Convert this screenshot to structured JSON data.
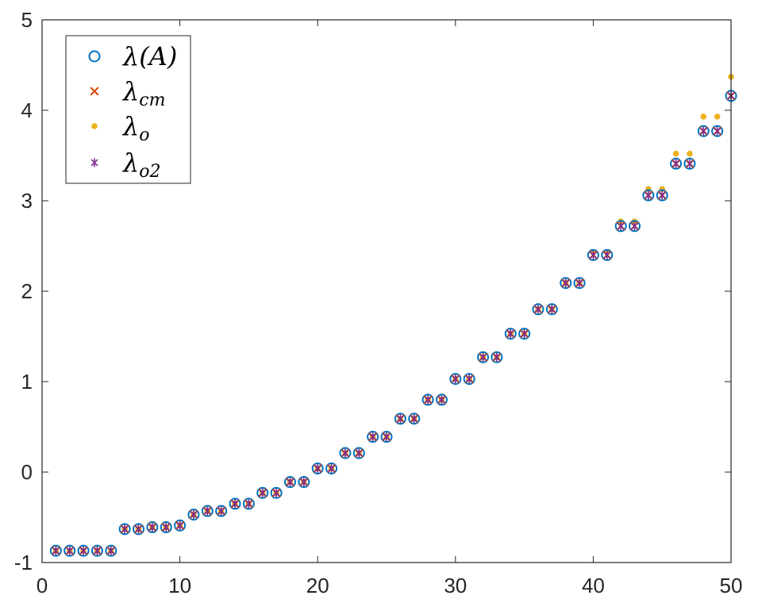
{
  "chart_data": {
    "type": "scatter",
    "title": "",
    "xlabel": "",
    "ylabel": "",
    "xlim": [
      0,
      50
    ],
    "ylim": [
      -1,
      5
    ],
    "xticks": [
      0,
      10,
      20,
      30,
      40,
      50
    ],
    "yticks": [
      -1,
      0,
      1,
      2,
      3,
      4,
      5
    ],
    "grid": false,
    "legend_position": "top-left",
    "x": [
      1,
      2,
      3,
      4,
      5,
      6,
      7,
      8,
      9,
      10,
      11,
      12,
      13,
      14,
      15,
      16,
      17,
      18,
      19,
      20,
      21,
      22,
      23,
      24,
      25,
      26,
      27,
      28,
      29,
      30,
      31,
      32,
      33,
      34,
      35,
      36,
      37,
      38,
      39,
      40,
      41,
      42,
      43,
      44,
      45,
      46,
      47,
      48,
      49,
      50
    ],
    "series": [
      {
        "name": "λ(A)",
        "label_base": "λ(A)",
        "label_sub": "",
        "marker": "circle",
        "color": "#0072BD",
        "values": [
          -0.87,
          -0.87,
          -0.87,
          -0.87,
          -0.87,
          -0.63,
          -0.63,
          -0.61,
          -0.61,
          -0.59,
          -0.47,
          -0.43,
          -0.43,
          -0.35,
          -0.35,
          -0.23,
          -0.23,
          -0.11,
          -0.11,
          0.04,
          0.04,
          0.21,
          0.21,
          0.39,
          0.39,
          0.59,
          0.59,
          0.8,
          0.8,
          1.03,
          1.03,
          1.27,
          1.27,
          1.53,
          1.53,
          1.8,
          1.8,
          2.09,
          2.09,
          2.4,
          2.4,
          2.72,
          2.72,
          3.06,
          3.06,
          3.41,
          3.41,
          3.77,
          3.77,
          4.16
        ]
      },
      {
        "name": "λcm",
        "label_base": "λ",
        "label_sub": "cm",
        "marker": "x",
        "color": "#D95319",
        "values": [
          -0.87,
          -0.87,
          -0.87,
          -0.87,
          -0.87,
          -0.63,
          -0.63,
          -0.61,
          -0.61,
          -0.59,
          -0.47,
          -0.43,
          -0.43,
          -0.35,
          -0.35,
          -0.23,
          -0.23,
          -0.11,
          -0.11,
          0.04,
          0.04,
          0.21,
          0.21,
          0.39,
          0.39,
          0.59,
          0.59,
          0.8,
          0.8,
          1.03,
          1.03,
          1.27,
          1.27,
          1.53,
          1.53,
          1.8,
          1.8,
          2.09,
          2.09,
          2.4,
          2.4,
          2.72,
          2.72,
          3.06,
          3.06,
          3.41,
          3.41,
          3.77,
          3.77,
          4.16
        ]
      },
      {
        "name": "λo",
        "label_base": "λ",
        "label_sub": "o",
        "marker": "dot",
        "color": "#EDB120",
        "values": [
          -0.87,
          -0.87,
          -0.87,
          -0.87,
          -0.87,
          -0.63,
          -0.63,
          -0.61,
          -0.61,
          -0.59,
          -0.47,
          -0.43,
          -0.43,
          -0.35,
          -0.35,
          -0.23,
          -0.23,
          -0.11,
          -0.11,
          0.04,
          0.04,
          0.21,
          0.21,
          0.39,
          0.39,
          0.59,
          0.59,
          0.8,
          0.8,
          1.03,
          1.03,
          1.27,
          1.27,
          1.53,
          1.53,
          1.8,
          1.8,
          2.09,
          2.09,
          2.43,
          2.43,
          2.77,
          2.77,
          3.13,
          3.13,
          3.52,
          3.52,
          3.93,
          3.93,
          4.37
        ]
      },
      {
        "name": "λo2",
        "label_base": "λ",
        "label_sub": "o2",
        "marker": "asterisk",
        "color": "#7E2F8E",
        "values": [
          -0.87,
          -0.87,
          -0.87,
          -0.87,
          -0.87,
          -0.63,
          -0.63,
          -0.61,
          -0.61,
          -0.59,
          -0.47,
          -0.43,
          -0.43,
          -0.35,
          -0.35,
          -0.23,
          -0.23,
          -0.11,
          -0.11,
          0.04,
          0.04,
          0.21,
          0.21,
          0.39,
          0.39,
          0.59,
          0.59,
          0.8,
          0.8,
          1.03,
          1.03,
          1.27,
          1.27,
          1.53,
          1.53,
          1.8,
          1.8,
          2.09,
          2.09,
          2.4,
          2.4,
          2.72,
          2.72,
          3.06,
          3.06,
          3.41,
          3.41,
          3.77,
          3.77,
          4.16
        ]
      }
    ]
  }
}
